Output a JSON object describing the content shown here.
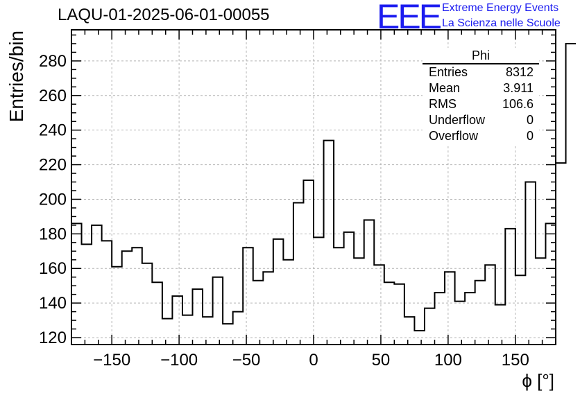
{
  "title": "LAQU-01-2025-06-01-00055",
  "logo": {
    "mark": "EEE",
    "line1": "Extreme Energy Events",
    "line2": "La Scienza nelle Scuole",
    "color": "#1c1cf0"
  },
  "stats_box": {
    "name": "Phi",
    "rows": [
      {
        "key": "Entries",
        "value": "8312"
      },
      {
        "key": "Mean",
        "value": "3.911"
      },
      {
        "key": "RMS",
        "value": "106.6"
      },
      {
        "key": "Underflow",
        "value": "0"
      },
      {
        "key": "Overflow",
        "value": "0"
      }
    ]
  },
  "chart_data": {
    "type": "bar",
    "style": "step-histogram",
    "xlabel": "ϕ [°]",
    "ylabel": "Entries/bin",
    "xlim": [
      -180,
      180
    ],
    "ylim": [
      116,
      298
    ],
    "bin_width": 7.5,
    "xticks": [
      -150,
      -100,
      -50,
      0,
      50,
      100,
      150
    ],
    "xtick_labels": [
      "−150",
      "−100",
      "−50",
      "0",
      "50",
      "100",
      "150"
    ],
    "yticks": [
      120,
      140,
      160,
      180,
      200,
      220,
      240,
      260,
      280
    ],
    "grid": true,
    "line_color": "#000000",
    "values": [
      186,
      174,
      185,
      176,
      161,
      170,
      172,
      163,
      152,
      131,
      144,
      133,
      148,
      132,
      155,
      128,
      135,
      172,
      153,
      158,
      177,
      165,
      198,
      211,
      178,
      234,
      172,
      181,
      166,
      188,
      162,
      152,
      151,
      132,
      124,
      137,
      146,
      158,
      141,
      146,
      153,
      162,
      139,
      183,
      156,
      210,
      166,
      186,
      221,
      290
    ]
  }
}
